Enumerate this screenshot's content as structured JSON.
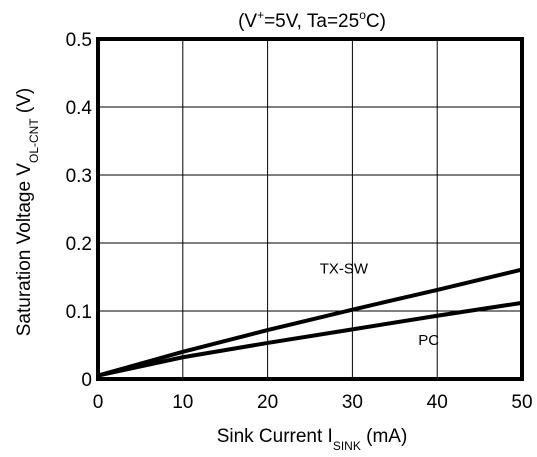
{
  "chart_data": {
    "type": "line",
    "title": {
      "open": "(V",
      "sup": "+",
      "middle": "=5V, Ta=25",
      "deg": "o",
      "close": "C)"
    },
    "xlabel": {
      "main": "Sink Current  I",
      "sub": "SINK",
      "unit": " (mA)"
    },
    "ylabel": {
      "main": "Saturation Voltage V",
      "sub": "OL-CNT",
      "unit": " (V)"
    },
    "xlim": [
      0,
      50
    ],
    "ylim": [
      0,
      0.5
    ],
    "x_ticks": [
      "0",
      "10",
      "20",
      "30",
      "40",
      "50"
    ],
    "y_ticks": [
      "0",
      "0.1",
      "0.2",
      "0.3",
      "0.4",
      "0.5"
    ],
    "grid": true,
    "series": [
      {
        "name": "TX-SW",
        "x": [
          0,
          10,
          20,
          30,
          40,
          50
        ],
        "y": [
          0.005,
          0.04,
          0.072,
          0.102,
          0.131,
          0.161
        ]
      },
      {
        "name": "PC",
        "x": [
          0,
          10,
          20,
          30,
          40,
          50
        ],
        "y": [
          0.005,
          0.032,
          0.053,
          0.073,
          0.093,
          0.112
        ]
      }
    ],
    "annotations": [
      {
        "text": "TX-SW",
        "x": 29,
        "y": 0.155
      },
      {
        "text": "PC",
        "x": 39,
        "y": 0.05
      }
    ],
    "line_color": "#000000"
  }
}
